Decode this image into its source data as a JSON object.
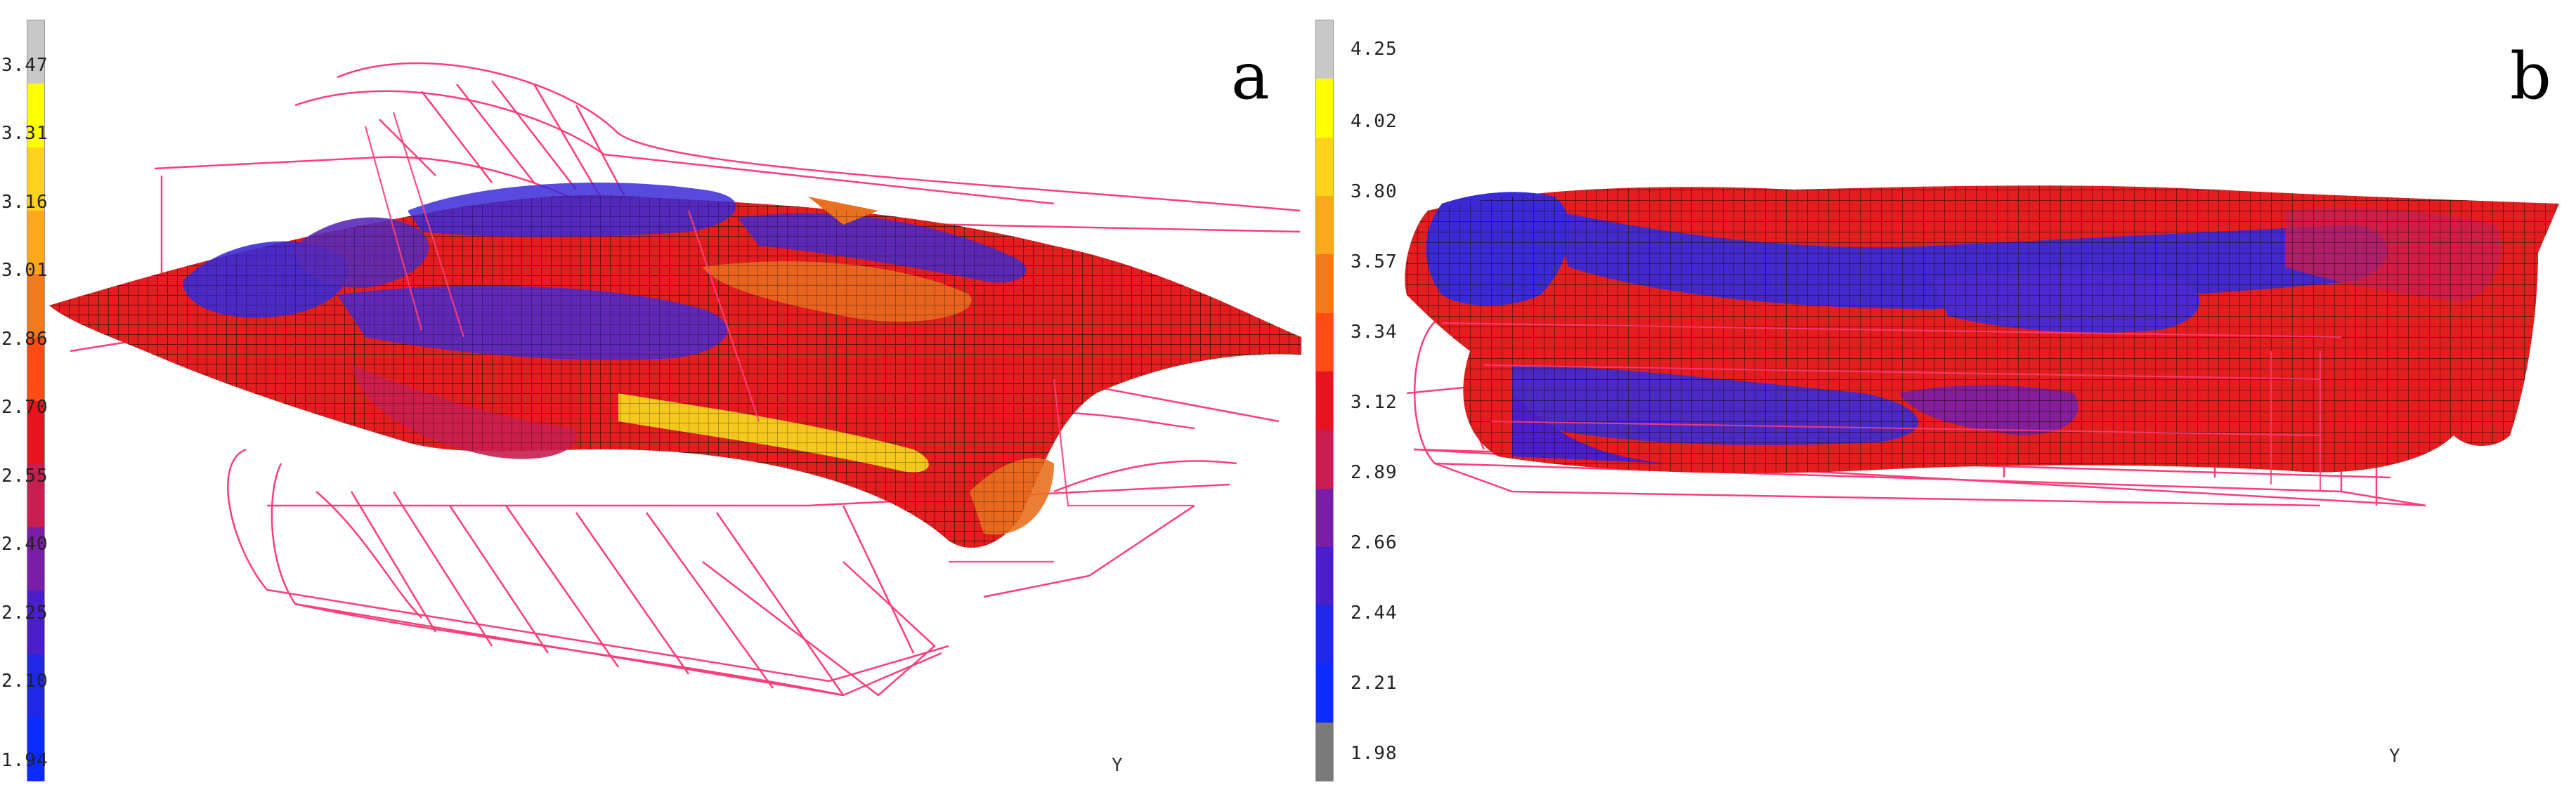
{
  "panels": [
    {
      "label": "a",
      "colorbar_ticks": [
        "3.47",
        "3.31",
        "3.16",
        "3.01",
        "2.86",
        "2.70",
        "2.55",
        "2.40",
        "2.25",
        "2.10",
        "1.94"
      ],
      "axis_label": "Y"
    },
    {
      "label": "b",
      "colorbar_ticks": [
        "4.25",
        "4.02",
        "3.80",
        "3.57",
        "3.34",
        "3.12",
        "2.89",
        "2.66",
        "2.44",
        "2.21",
        "1.98"
      ],
      "axis_label": "Y"
    }
  ],
  "colors": {
    "scale": [
      "#c8c8c8",
      "#ffff00",
      "#ffd21e",
      "#ffa81e",
      "#f27a1e",
      "#ff4b14",
      "#e6141e",
      "#c81e50",
      "#7a1ea8",
      "#4a1ec8",
      "#1e28e6",
      "#0a2cff",
      "#7a7a7a"
    ],
    "wireframe": "#ff3d7a",
    "mesh_red": "#e41e1e",
    "mesh_blue": "#3a2ad6",
    "mesh_orange": "#e8701e",
    "mesh_yellow": "#f5d21e"
  }
}
